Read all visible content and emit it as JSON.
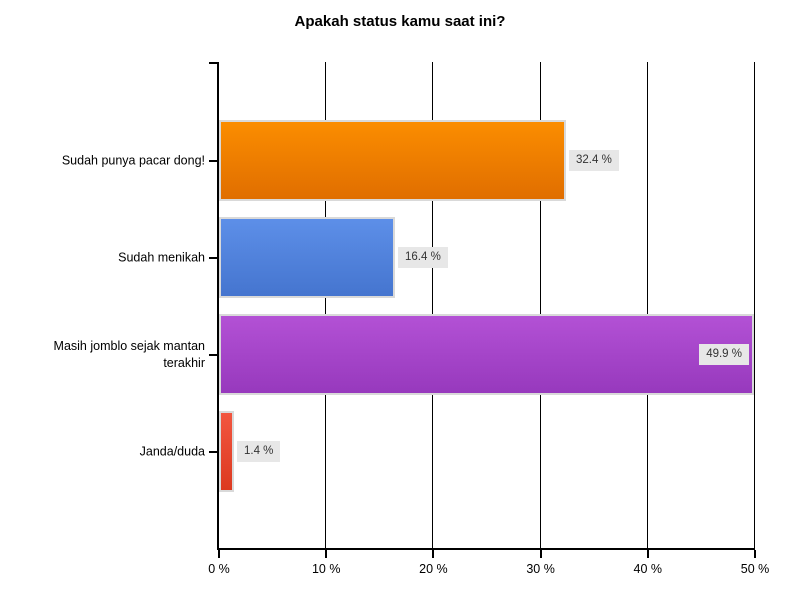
{
  "chart_data": {
    "type": "bar",
    "orientation": "horizontal",
    "title": "Apakah status kamu saat ini?",
    "categories": [
      "Sudah punya pacar dong!",
      "Sudah menikah",
      "Masih jomblo sejak mantan terakhir",
      "Janda/duda"
    ],
    "values": [
      32.4,
      16.4,
      49.9,
      1.4
    ],
    "value_labels": [
      "32.4 %",
      "16.4 %",
      "49.9 %",
      "1.4 %"
    ],
    "bar_colors_top": [
      "#fb8d00",
      "#5d8fe8",
      "#b351d5",
      "#f25640"
    ],
    "bar_colors_bottom": [
      "#e06e00",
      "#4575cf",
      "#9739bd",
      "#dc3a20"
    ],
    "bar_border_color": "#d9d9d9",
    "value_label_bg": "#e7e7e7",
    "value_label_color": "#333333",
    "axis_color": "#000000",
    "x_ticks": [
      "0 %",
      "10 %",
      "20 %",
      "30 %",
      "40 %",
      "50 %"
    ],
    "xlim": [
      0,
      50
    ],
    "xlabel": "",
    "ylabel": "",
    "grid": true,
    "legend": false
  }
}
